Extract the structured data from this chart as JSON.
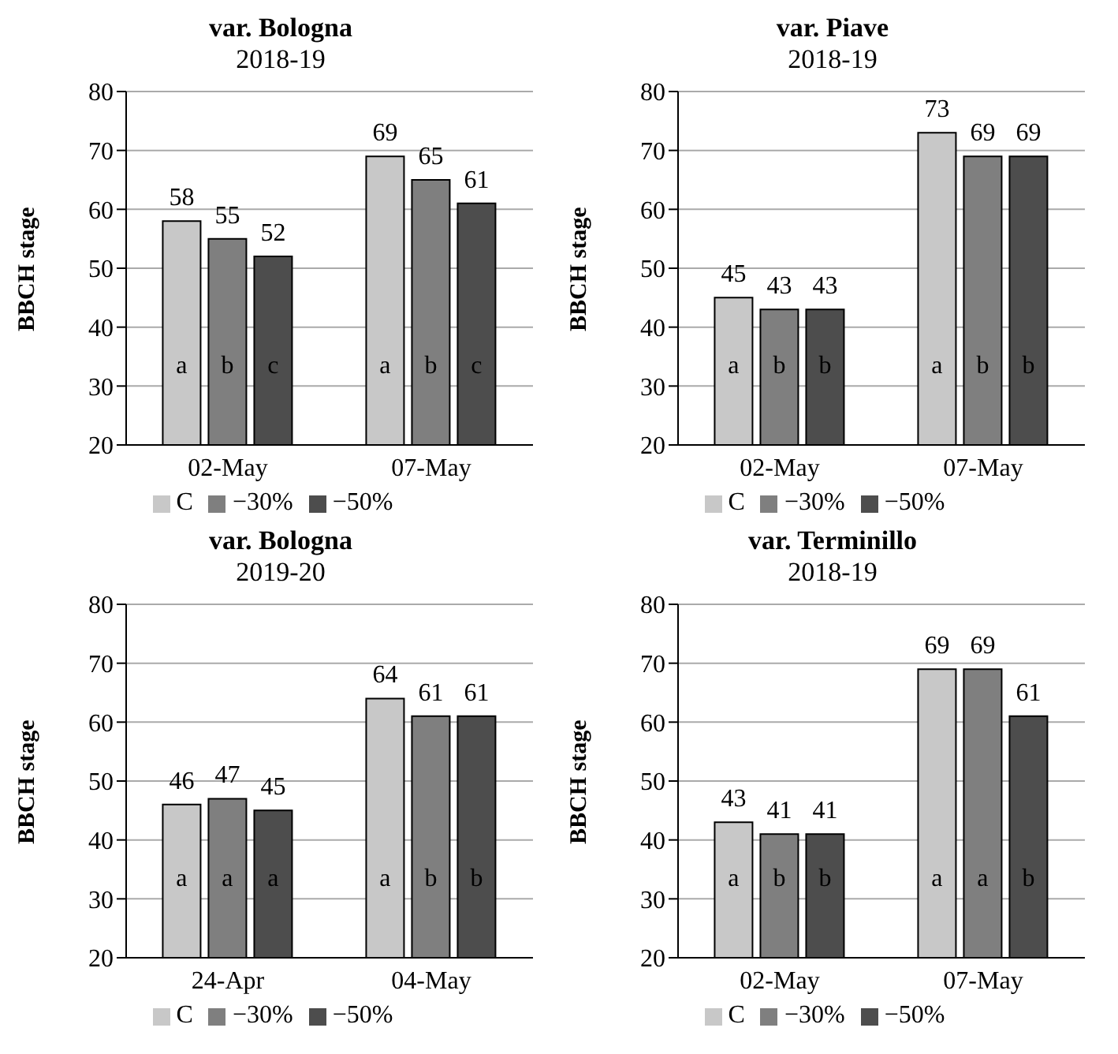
{
  "chart_data": [
    {
      "type": "bar",
      "title": "var. Bologna",
      "subtitle": "2018-19",
      "ylabel": "BBCH stage",
      "categories": [
        "02-May",
        "07-May"
      ],
      "series": [
        {
          "name": "C",
          "color": "#c8c8c8",
          "values": [
            58,
            69
          ]
        },
        {
          "name": "−30%",
          "color": "#7f7f7f",
          "values": [
            55,
            65
          ]
        },
        {
          "name": "−50%",
          "color": "#4d4d4d",
          "values": [
            52,
            61
          ]
        }
      ],
      "ylim": [
        20,
        80
      ],
      "yticks": [
        20,
        30,
        40,
        50,
        60,
        70,
        80
      ],
      "grid": "y",
      "legend": "bottom",
      "data_labels": true,
      "annotations": [
        "a",
        "b",
        "c",
        "a",
        "b",
        "c"
      ]
    },
    {
      "type": "bar",
      "title": "var. Piave",
      "subtitle": "2018-19",
      "ylabel": "BBCH stage",
      "categories": [
        "02-May",
        "07-May"
      ],
      "series": [
        {
          "name": "C",
          "color": "#c8c8c8",
          "values": [
            45,
            73
          ]
        },
        {
          "name": "−30%",
          "color": "#7f7f7f",
          "values": [
            43,
            69
          ]
        },
        {
          "name": "−50%",
          "color": "#4d4d4d",
          "values": [
            43,
            69
          ]
        }
      ],
      "ylim": [
        20,
        80
      ],
      "yticks": [
        20,
        30,
        40,
        50,
        60,
        70,
        80
      ],
      "grid": "y",
      "legend": "bottom",
      "data_labels": true,
      "annotations": [
        "a",
        "b",
        "b",
        "a",
        "b",
        "b"
      ]
    },
    {
      "type": "bar",
      "title": "var. Bologna",
      "subtitle": "2019-20",
      "ylabel": "BBCH stage",
      "categories": [
        "24-Apr",
        "04-May"
      ],
      "series": [
        {
          "name": "C",
          "color": "#c8c8c8",
          "values": [
            46,
            64
          ]
        },
        {
          "name": "−30%",
          "color": "#7f7f7f",
          "values": [
            47,
            61
          ]
        },
        {
          "name": "−50%",
          "color": "#4d4d4d",
          "values": [
            45,
            61
          ]
        }
      ],
      "ylim": [
        20,
        80
      ],
      "yticks": [
        20,
        30,
        40,
        50,
        60,
        70,
        80
      ],
      "grid": "y",
      "legend": "bottom",
      "data_labels": true,
      "annotations": [
        "a",
        "a",
        "a",
        "a",
        "b",
        "b"
      ]
    },
    {
      "type": "bar",
      "title": "var. Terminillo",
      "subtitle": "2018-19",
      "ylabel": "BBCH stage",
      "categories": [
        "02-May",
        "07-May"
      ],
      "series": [
        {
          "name": "C",
          "color": "#c8c8c8",
          "values": [
            43,
            69
          ]
        },
        {
          "name": "−30%",
          "color": "#7f7f7f",
          "values": [
            41,
            69
          ]
        },
        {
          "name": "−50%",
          "color": "#4d4d4d",
          "values": [
            41,
            61
          ]
        }
      ],
      "ylim": [
        20,
        80
      ],
      "yticks": [
        20,
        30,
        40,
        50,
        60,
        70,
        80
      ],
      "grid": "y",
      "legend": "bottom",
      "data_labels": true,
      "annotations": [
        "a",
        "b",
        "b",
        "a",
        "a",
        "b"
      ]
    }
  ]
}
